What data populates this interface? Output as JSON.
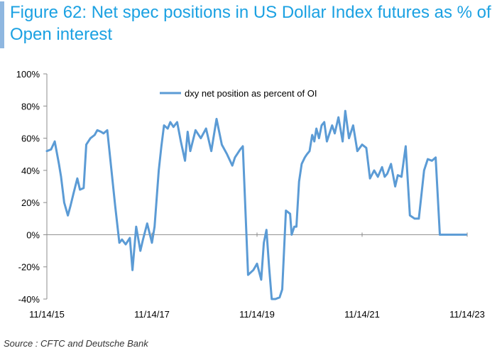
{
  "title": "Figure 62: Net spec positions in US Dollar Index futures as % of Open interest",
  "source": "Source : CFTC and Deutsche Bank",
  "colors": {
    "line": "#5b9bd5",
    "title": "#1ba1e2",
    "accent_bar": "#8fb7e0"
  },
  "chart_data": {
    "type": "line",
    "title": "Figure 62: Net spec positions in US Dollar Index futures as % of Open interest",
    "xlabel": "",
    "ylabel": "",
    "ylim": [
      -40,
      100
    ],
    "yticks": [
      -40,
      -20,
      0,
      20,
      40,
      60,
      80,
      100
    ],
    "ytick_labels": [
      "-40%",
      "-20%",
      "0%",
      "20%",
      "40%",
      "60%",
      "80%",
      "100%"
    ],
    "xlim": [
      2015.87,
      2023.87
    ],
    "xticks": [
      2015.87,
      2017.87,
      2019.87,
      2021.87,
      2023.87
    ],
    "xtick_labels": [
      "11/14/15",
      "11/14/17",
      "11/14/19",
      "11/14/21",
      "11/14/23"
    ],
    "legend": "top-center",
    "series": [
      {
        "name": "dxy net position as percent of OI",
        "x": [
          2015.87,
          2015.95,
          2016.02,
          2016.1,
          2016.14,
          2016.2,
          2016.27,
          2016.32,
          2016.38,
          2016.45,
          2016.5,
          2016.57,
          2016.62,
          2016.7,
          2016.78,
          2016.83,
          2016.9,
          2016.95,
          2017.02,
          2017.1,
          2017.17,
          2017.25,
          2017.3,
          2017.37,
          2017.45,
          2017.5,
          2017.57,
          2017.65,
          2017.7,
          2017.78,
          2017.87,
          2017.92,
          2018.0,
          2018.05,
          2018.1,
          2018.17,
          2018.22,
          2018.28,
          2018.35,
          2018.42,
          2018.5,
          2018.55,
          2018.6,
          2018.7,
          2018.8,
          2018.9,
          2019.0,
          2019.1,
          2019.2,
          2019.3,
          2019.4,
          2019.45,
          2019.55,
          2019.6,
          2019.7,
          2019.8,
          2019.87,
          2019.95,
          2020.0,
          2020.05,
          2020.1,
          2020.15,
          2020.22,
          2020.3,
          2020.35,
          2020.42,
          2020.5,
          2020.53,
          2020.58,
          2020.62,
          2020.67,
          2020.72,
          2020.78,
          2020.82,
          2020.87,
          2020.92,
          2020.96,
          2021.0,
          2021.05,
          2021.1,
          2021.15,
          2021.2,
          2021.3,
          2021.35,
          2021.42,
          2021.5,
          2021.55,
          2021.62,
          2021.7,
          2021.78,
          2021.87,
          2021.95,
          2022.02,
          2022.1,
          2022.17,
          2022.25,
          2022.3,
          2022.35,
          2022.42,
          2022.5,
          2022.55,
          2022.62,
          2022.7,
          2022.78,
          2022.87,
          2022.95,
          2023.05,
          2023.12,
          2023.2,
          2023.27,
          2023.35,
          2023.42,
          2023.5,
          2023.55,
          2023.6,
          2023.65,
          2023.72,
          2023.78,
          2023.85,
          2023.9
        ],
        "values": [
          52,
          53,
          58,
          44,
          36,
          20,
          12,
          18,
          26,
          35,
          28,
          29,
          56,
          60,
          62,
          65,
          64,
          63,
          65,
          40,
          18,
          -5,
          -3,
          -6,
          -2,
          -22,
          5,
          -10,
          -3,
          7,
          -5,
          5,
          40,
          55,
          68,
          66,
          70,
          67,
          70,
          58,
          46,
          64,
          52,
          65,
          60,
          66,
          52,
          72,
          56,
          50,
          43,
          48,
          53,
          55,
          -25,
          -22,
          -18,
          -28,
          -5,
          3,
          -20,
          -40,
          -40,
          -39,
          -34,
          15,
          13,
          0,
          5,
          5,
          33,
          44,
          48,
          50,
          52,
          62,
          58,
          66,
          60,
          68,
          70,
          58,
          68,
          63,
          73,
          58,
          77,
          60,
          68,
          52,
          56,
          54,
          35,
          40,
          36,
          42,
          36,
          38,
          44,
          30,
          37,
          36,
          55,
          12,
          10,
          10,
          40,
          47,
          46,
          48,
          0,
          0,
          0,
          0,
          0,
          0,
          0,
          0,
          0,
          0
        ]
      }
    ]
  }
}
